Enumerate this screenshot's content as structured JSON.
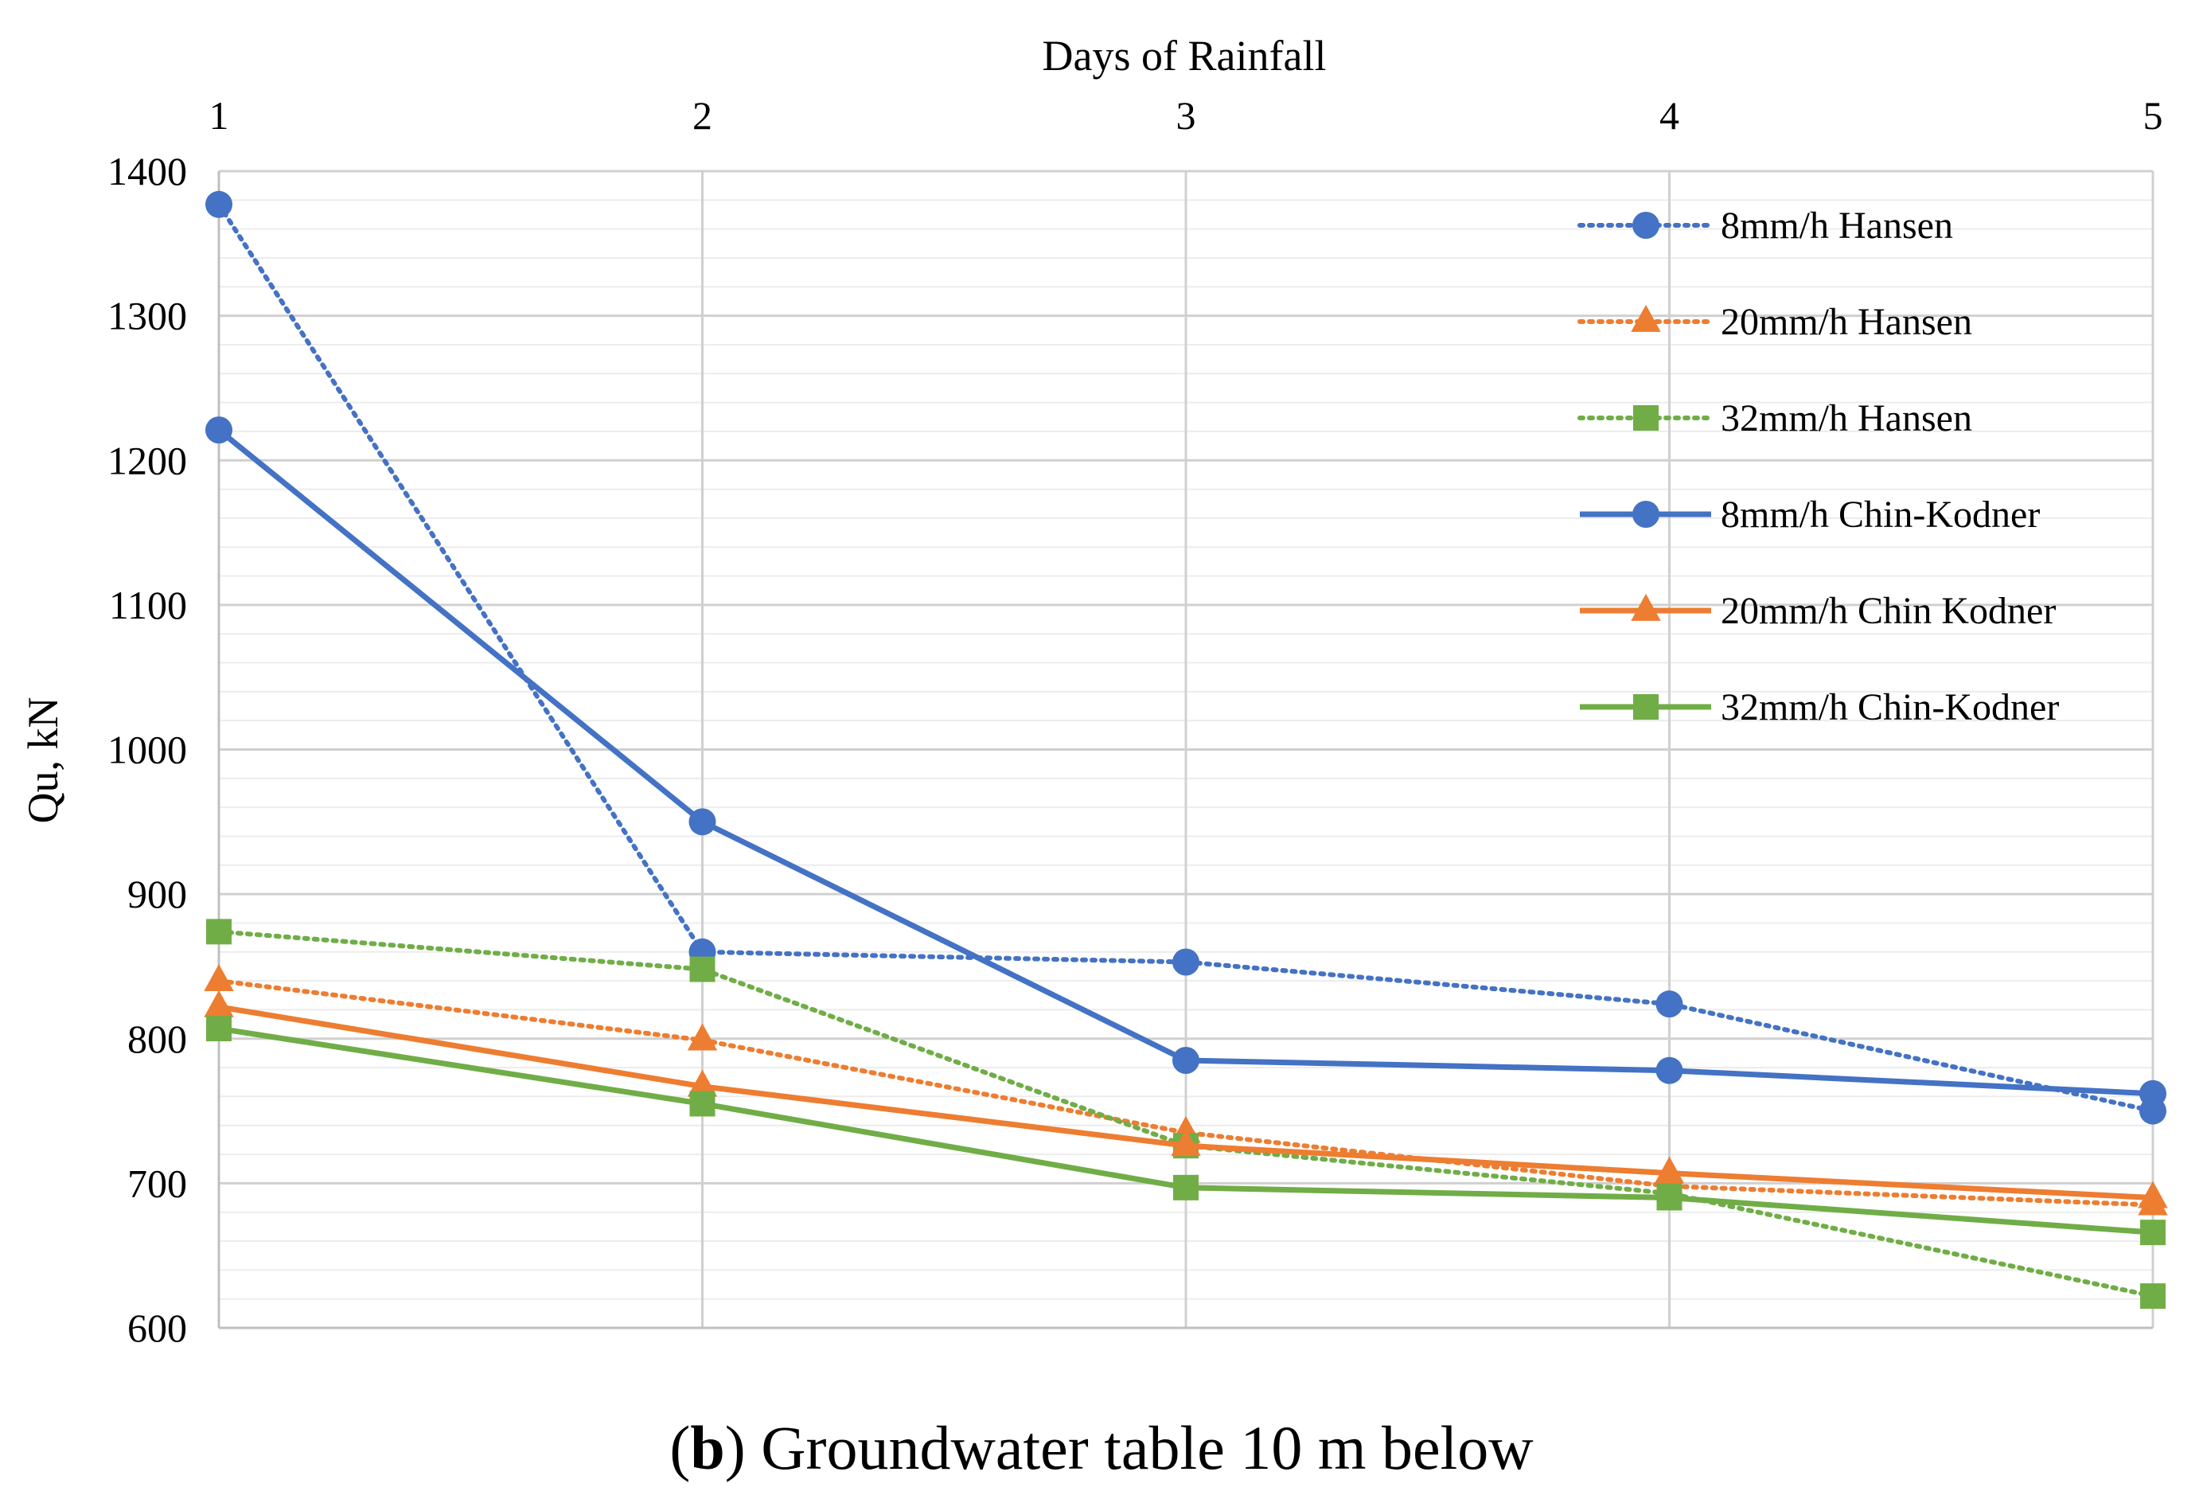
{
  "chart_data": {
    "type": "line",
    "title": "",
    "xlabel": "Days of Rainfall",
    "ylabel": "Qu, kN",
    "x": [
      1,
      2,
      3,
      4,
      5
    ],
    "x_tick_labels": [
      "1",
      "2",
      "3",
      "4",
      "5"
    ],
    "xlim": [
      1,
      5
    ],
    "ylim": [
      600,
      1400
    ],
    "y_major_step": 100,
    "y_minor_step": 20,
    "y_tick_labels": [
      "600",
      "700",
      "800",
      "900",
      "1000",
      "1100",
      "1200",
      "1300",
      "1400"
    ],
    "grid": true,
    "legend_position": "top-right",
    "series": [
      {
        "name": "8mm/h Hansen",
        "values": [
          1377,
          860,
          853,
          824,
          750
        ],
        "color": "#4472C4",
        "dashed": true,
        "marker": "circle"
      },
      {
        "name": "20mm/h Hansen",
        "values": [
          840,
          799,
          735,
          698,
          685
        ],
        "color": "#ED7D31",
        "dashed": true,
        "marker": "triangle"
      },
      {
        "name": "32mm/h Hansen",
        "values": [
          874,
          848,
          726,
          693,
          622
        ],
        "color": "#70AD47",
        "dashed": true,
        "marker": "square"
      },
      {
        "name": "8mm/h Chin-Kodner",
        "values": [
          1221,
          950,
          785,
          778,
          762
        ],
        "color": "#4472C4",
        "dashed": false,
        "marker": "circle"
      },
      {
        "name": "20mm/h Chin Kodner",
        "values": [
          822,
          767,
          726,
          707,
          690
        ],
        "color": "#ED7D31",
        "dashed": false,
        "marker": "triangle"
      },
      {
        "name": "32mm/h Chin-Kodner",
        "values": [
          807,
          755,
          697,
          690,
          666
        ],
        "color": "#70AD47",
        "dashed": false,
        "marker": "square"
      }
    ]
  },
  "caption": {
    "letter": "b",
    "text": "Groundwater table 10 m below"
  }
}
